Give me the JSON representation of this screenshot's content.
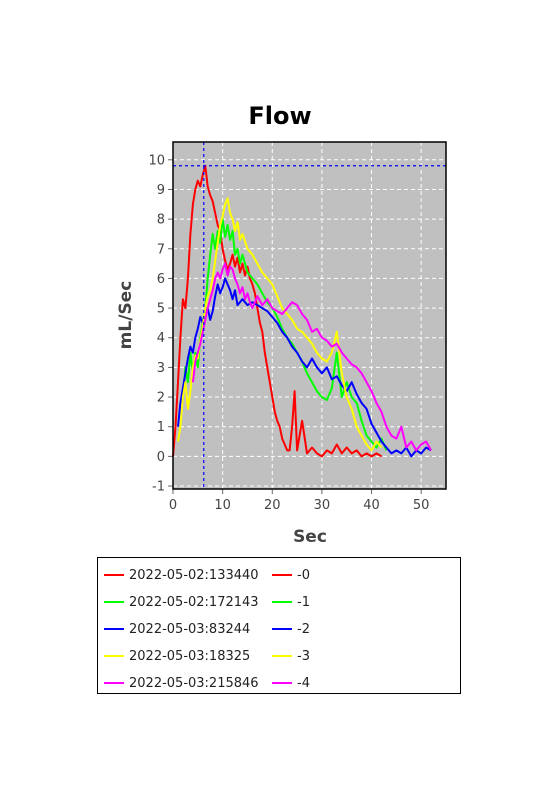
{
  "chart_data": {
    "type": "line",
    "title": "Flow",
    "xlabel": "Sec",
    "ylabel": "mL/Sec",
    "xlim": [
      0,
      55
    ],
    "ylim": [
      -1.1,
      10.6
    ],
    "xticks": [
      "0",
      "10",
      "20",
      "30",
      "40",
      "50"
    ],
    "yticks": [
      "-1",
      "0",
      "1",
      "2",
      "3",
      "4",
      "5",
      "6",
      "7",
      "8",
      "9",
      "10"
    ],
    "grid": true,
    "background": "#c0c0c0",
    "crosshair": {
      "x": 6.2,
      "y": 9.8,
      "color": "#0000ff"
    },
    "legend_position": "bottom",
    "series": [
      {
        "name": "2022-05-02:133440",
        "suffix": "-0",
        "color": "#ff0000",
        "x": [
          0,
          0.5,
          1,
          1.5,
          2,
          2.5,
          3,
          3.5,
          4,
          4.5,
          5,
          5.5,
          6,
          6.5,
          7,
          7.5,
          8,
          8.5,
          9,
          9.5,
          10,
          10.5,
          11,
          11.5,
          12,
          12.5,
          13,
          13.5,
          14,
          14.5,
          15,
          15.5,
          16,
          16.5,
          17,
          17.5,
          18,
          18.5,
          19,
          19.5,
          20,
          20.5,
          21,
          21.5,
          22,
          22.5,
          23,
          23.5,
          24,
          24.5,
          25,
          26,
          27,
          28,
          29,
          30,
          31,
          32,
          33,
          34,
          35,
          36,
          37,
          38,
          39,
          40,
          41,
          42
        ],
        "y": [
          0,
          1,
          2.5,
          4,
          5.3,
          5,
          6,
          7.5,
          8.5,
          9,
          9.3,
          9.1,
          9.5,
          9.8,
          9.1,
          8.8,
          8.6,
          8.2,
          7.8,
          7.6,
          7,
          6.6,
          6.3,
          6.5,
          6.8,
          6.4,
          6.7,
          6.2,
          6.5,
          6.1,
          6.4,
          6,
          5.8,
          5.5,
          5,
          4.5,
          4.2,
          3.5,
          3,
          2.5,
          2,
          1.5,
          1.2,
          1,
          0.6,
          0.4,
          0.2,
          0.2,
          1,
          2.2,
          0.2,
          1.2,
          0.1,
          0.3,
          0.1,
          0,
          0.2,
          0.1,
          0.4,
          0.1,
          0.3,
          0.1,
          0.2,
          0,
          0.1,
          0,
          0.1,
          0
        ]
      },
      {
        "name": "2022-05-02:172143",
        "suffix": "-1",
        "color": "#00ff00",
        "x": [
          2,
          2.5,
          3,
          3.5,
          4,
          4.5,
          5,
          5.5,
          6,
          6.5,
          7,
          7.5,
          8,
          8.5,
          9,
          9.5,
          10,
          10.5,
          11,
          11.5,
          12,
          12.5,
          13,
          13.5,
          14,
          15,
          16,
          17,
          18,
          19,
          20,
          21,
          22,
          23,
          24,
          25,
          26,
          27,
          28,
          29,
          30,
          31,
          32,
          33,
          34,
          35,
          36,
          37,
          38,
          39,
          40,
          41,
          42,
          43
        ],
        "y": [
          2,
          3,
          2.5,
          3.5,
          2.8,
          3.5,
          3,
          4,
          4.5,
          5,
          6,
          6.8,
          7.5,
          7,
          7.6,
          7.2,
          8,
          7.4,
          7.8,
          7.3,
          7.6,
          6.8,
          7,
          6.5,
          6.8,
          6.2,
          6,
          5.8,
          5.5,
          5.2,
          5,
          4.7,
          4.3,
          4,
          3.8,
          3.5,
          3.2,
          2.8,
          2.5,
          2.2,
          2,
          1.9,
          2.3,
          3.5,
          2,
          2.5,
          2,
          1.8,
          1.2,
          0.7,
          0.5,
          0.3,
          0.6,
          0.2
        ]
      },
      {
        "name": "2022-05-03:83244",
        "suffix": "-2",
        "color": "#0000ff",
        "x": [
          1,
          1.5,
          2,
          2.5,
          3,
          3.5,
          4,
          4.5,
          5,
          5.5,
          6,
          6.5,
          7,
          7.5,
          8,
          8.5,
          9,
          9.5,
          10,
          10.5,
          11,
          11.5,
          12,
          12.5,
          13,
          14,
          15,
          16,
          17,
          18,
          19,
          20,
          21,
          22,
          23,
          24,
          25,
          26,
          27,
          28,
          29,
          30,
          31,
          32,
          33,
          34,
          35,
          36,
          37,
          38,
          39,
          40,
          41,
          42,
          43,
          44,
          45,
          46,
          47,
          48,
          49,
          50,
          51,
          52
        ],
        "y": [
          1,
          1.8,
          2.3,
          2.8,
          3.3,
          3.7,
          3.5,
          4,
          4.3,
          4.7,
          4.5,
          4.8,
          5,
          4.6,
          4.9,
          5.4,
          5.8,
          5.5,
          5.7,
          6,
          5.8,
          5.6,
          5.3,
          5.6,
          5.1,
          5.3,
          5.1,
          5.2,
          5.1,
          5,
          4.9,
          4.7,
          4.5,
          4.2,
          4,
          3.7,
          3.5,
          3.2,
          3,
          3.3,
          3,
          2.8,
          3,
          2.6,
          2.7,
          2.4,
          2.2,
          2.5,
          2.1,
          1.8,
          1.6,
          1.1,
          0.8,
          0.5,
          0.3,
          0.1,
          0.2,
          0.1,
          0.3,
          0,
          0.2,
          0.1,
          0.3,
          0.2
        ]
      },
      {
        "name": "2022-05-03:18325",
        "suffix": "-3",
        "color": "#ffff00",
        "x": [
          1,
          1.5,
          2,
          2.5,
          3,
          3.5,
          4,
          4.5,
          5,
          5.5,
          6,
          6.5,
          7,
          7.5,
          8,
          8.5,
          9,
          9.5,
          10,
          10.5,
          11,
          11.5,
          12,
          12.5,
          13,
          13.5,
          14,
          15,
          16,
          17,
          18,
          19,
          20,
          21,
          22,
          23,
          24,
          25,
          26,
          27,
          28,
          29,
          30,
          31,
          32,
          33,
          34,
          35,
          36,
          37,
          38,
          39,
          40,
          41,
          42
        ],
        "y": [
          0.5,
          1,
          2,
          2.5,
          1.6,
          2.2,
          3,
          3.4,
          3.3,
          3.9,
          4.4,
          5,
          5.4,
          5.6,
          6,
          6.6,
          7.2,
          7.8,
          8.1,
          8.5,
          8.7,
          8.2,
          8,
          7.6,
          7.9,
          7.3,
          7.5,
          7,
          6.8,
          6.5,
          6.2,
          6,
          5.8,
          5.4,
          5,
          4.8,
          4.6,
          4.3,
          4.2,
          4,
          3.8,
          3.5,
          3.3,
          3.2,
          3.5,
          4.2,
          2.8,
          2,
          1.6,
          1,
          0.7,
          0.4,
          0.2,
          0.5,
          0.3
        ]
      },
      {
        "name": "2022-05-03:215846",
        "suffix": "-4",
        "color": "#ff00ff",
        "x": [
          4,
          4.5,
          5,
          5.5,
          6,
          6.5,
          7,
          7.5,
          8,
          8.5,
          9,
          9.5,
          10,
          10.5,
          11,
          11.5,
          12,
          12.5,
          13,
          13.5,
          14,
          14.5,
          15,
          15.5,
          16,
          17,
          18,
          19,
          20,
          21,
          22,
          23,
          24,
          25,
          26,
          27,
          28,
          29,
          30,
          31,
          32,
          33,
          34,
          35,
          36,
          37,
          38,
          39,
          40,
          41,
          42,
          43,
          44,
          45,
          46,
          47,
          48,
          49,
          50,
          51,
          52
        ],
        "y": [
          2.5,
          3.2,
          3.5,
          3.8,
          4.2,
          4.6,
          5,
          5.3,
          5.6,
          6,
          6.2,
          6,
          6.3,
          6.5,
          6.1,
          6.4,
          6.3,
          6,
          5.8,
          5.5,
          5.7,
          5.3,
          5.5,
          5.2,
          5,
          5.4,
          5.1,
          5.3,
          5,
          4.9,
          4.8,
          5,
          5.2,
          5.1,
          4.8,
          4.6,
          4.2,
          4.3,
          4,
          3.9,
          3.7,
          3.8,
          3.5,
          3.3,
          3.1,
          3,
          2.8,
          2.5,
          2.2,
          1.8,
          1.5,
          1,
          0.7,
          0.6,
          1,
          0.3,
          0.5,
          0.2,
          0.4,
          0.5,
          0.2
        ]
      }
    ]
  }
}
